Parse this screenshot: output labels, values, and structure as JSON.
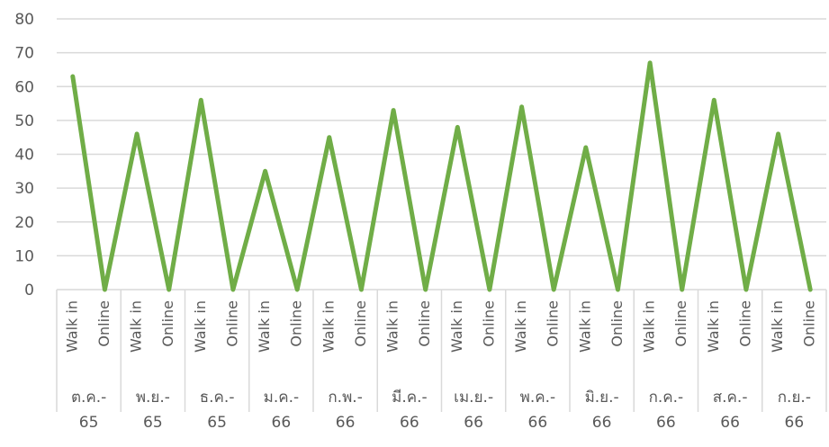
{
  "chart_data": {
    "type": "line",
    "title": "",
    "xlabel": "",
    "ylabel": "",
    "ylim": [
      0,
      80
    ],
    "yticks": [
      0,
      10,
      20,
      30,
      40,
      50,
      60,
      70,
      80
    ],
    "grid": true,
    "legend": "none",
    "line_color": "#70AD47",
    "grid_color": "#D9D9D9",
    "groups": [
      {
        "line1": "ต.ค.-",
        "line2": "65"
      },
      {
        "line1": "พ.ย.-",
        "line2": "65"
      },
      {
        "line1": "ธ.ค.-",
        "line2": "65"
      },
      {
        "line1": "ม.ค.-",
        "line2": "66"
      },
      {
        "line1": "ก.พ.-",
        "line2": "66"
      },
      {
        "line1": "มี.ค.-",
        "line2": "66"
      },
      {
        "line1": "เม.ย.-",
        "line2": "66"
      },
      {
        "line1": "พ.ค.-",
        "line2": "66"
      },
      {
        "line1": "มิ.ย.-",
        "line2": "66"
      },
      {
        "line1": "ก.ค.-",
        "line2": "66"
      },
      {
        "line1": "ส.ค.-",
        "line2": "66"
      },
      {
        "line1": "ก.ย.-",
        "line2": "66"
      }
    ],
    "subcategories": [
      "Walk in",
      "Online"
    ],
    "series": [
      {
        "values": [
          63,
          0,
          46,
          0,
          56,
          0,
          35,
          0,
          45,
          0,
          53,
          0,
          48,
          0,
          54,
          0,
          42,
          0,
          67,
          0,
          56,
          0,
          46,
          0
        ]
      }
    ]
  }
}
